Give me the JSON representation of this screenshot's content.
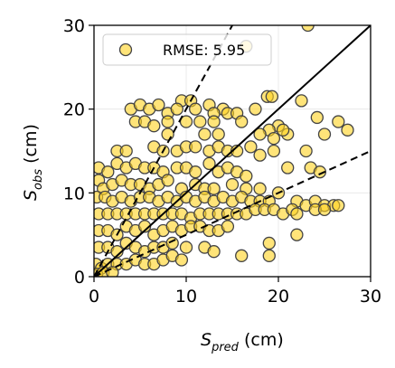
{
  "chart_data": {
    "type": "scatter",
    "xlabel": {
      "symbol": "S",
      "subscript": "pred",
      "unit": "(cm)"
    },
    "ylabel": {
      "symbol": "S",
      "subscript": "obs",
      "unit": "(cm)"
    },
    "xlim": [
      0,
      30
    ],
    "ylim": [
      0,
      30
    ],
    "xticks": [
      0,
      10,
      20,
      30
    ],
    "yticks": [
      0,
      10,
      20,
      30
    ],
    "grid": true,
    "legend": "upper left",
    "reference_lines": [
      {
        "slope": 1,
        "style": "solid"
      },
      {
        "slope": 2,
        "style": "dashed"
      },
      {
        "slope": 0.5,
        "style": "dashed"
      }
    ],
    "x": [
      23.2,
      16.5,
      9.5,
      10.5,
      12.5,
      14,
      18.8,
      19.3,
      22.5,
      4,
      5,
      6,
      7,
      8,
      9,
      11,
      13,
      14.5,
      15.5,
      17.5,
      20,
      21,
      24.2,
      26.5,
      27.5,
      4.5,
      5.5,
      6.5,
      8,
      10,
      11.5,
      13,
      16,
      19,
      20.5,
      8,
      12,
      13.5,
      18,
      19.5,
      25,
      2.5,
      3.5,
      6.5,
      7.5,
      9,
      10,
      11,
      12.5,
      13.5,
      14.5,
      15.5,
      17,
      18,
      19.5,
      23,
      0.5,
      1.5,
      2.5,
      3.5,
      4.5,
      5.5,
      6.5,
      7.5,
      9,
      10,
      11,
      12.5,
      13.5,
      14.5,
      15.5,
      16.5,
      21,
      23.5,
      24.5,
      0.5,
      1,
      2,
      3,
      4,
      5,
      6,
      7,
      8,
      9.5,
      11,
      12,
      13,
      15,
      16.5,
      18,
      20,
      0.3,
      1.2,
      2,
      3,
      4,
      5,
      6,
      7,
      8,
      9,
      10,
      11,
      12,
      13,
      14,
      15,
      16,
      17,
      18,
      19,
      22,
      23,
      24,
      25,
      26,
      26.5,
      0.5,
      1.5,
      2.5,
      3.5,
      4.5,
      5.5,
      6.5,
      7.5,
      8.5,
      9.5,
      10.5,
      11.5,
      12.5,
      13.5,
      14.5,
      15.5,
      16.5,
      17.5,
      18.5,
      19.5,
      20.5,
      21.5,
      22,
      24,
      25,
      0.5,
      1.5,
      2.5,
      3.5,
      4.5,
      5.5,
      6.5,
      7.5,
      8.5,
      9.5,
      10.5,
      11.5,
      12.5,
      13.5,
      14.5,
      19,
      22,
      0.5,
      1.5,
      2.5,
      3.5,
      4.5,
      5.5,
      6.5,
      7.5,
      8.5,
      10,
      12,
      13,
      16,
      19,
      0.2,
      0.8,
      1.5,
      2.5,
      3.5,
      4.5,
      5.5,
      6.5,
      7.5,
      8.5,
      9.5,
      0.3,
      1,
      2
    ],
    "series": [
      {
        "name": "RMSE: 5.95",
        "color": "#ffd21f",
        "edge": "#444444",
        "values": [
          30,
          27.5,
          21,
          21,
          20.5,
          20,
          21.5,
          21.5,
          21,
          20,
          20.5,
          20,
          20.5,
          19.5,
          20,
          20,
          19.5,
          19.5,
          19.5,
          20,
          18,
          17,
          19,
          18.5,
          17.5,
          18.5,
          18.5,
          18,
          18.5,
          18.5,
          18.5,
          18.5,
          18.5,
          17.5,
          17.5,
          17,
          17,
          17,
          17,
          16.5,
          17,
          15,
          15,
          15.5,
          15,
          15,
          15.5,
          15.5,
          15,
          15.5,
          15,
          15,
          15.5,
          14.5,
          15,
          15,
          13,
          12.5,
          13.5,
          13,
          13.5,
          13,
          13,
          12.5,
          13,
          13,
          12.5,
          13.5,
          12.5,
          13,
          12.5,
          12,
          13,
          13,
          12.5,
          11.5,
          10.5,
          11,
          11.5,
          11,
          11,
          10.5,
          11,
          11.5,
          10.5,
          11,
          10.5,
          10.5,
          11,
          10.5,
          10.5,
          10,
          9.5,
          9.5,
          9,
          9.5,
          9,
          9.5,
          9.5,
          9,
          9.5,
          9,
          9.5,
          9,
          9.5,
          9,
          9.5,
          9,
          9.5,
          9,
          9,
          9,
          9,
          8.5,
          9,
          8.5,
          8.5,
          8.5,
          7.5,
          7.5,
          7.5,
          7.5,
          7.5,
          7.5,
          7.5,
          7.5,
          7.5,
          7.5,
          7,
          7.5,
          7.5,
          7.5,
          7.5,
          7.5,
          7.5,
          8,
          8,
          8,
          7.5,
          8,
          7.5,
          8,
          8,
          5.5,
          5.5,
          5,
          6,
          5.5,
          6,
          5,
          5.5,
          6,
          5.5,
          6,
          6,
          5.5,
          5.5,
          6,
          4,
          5,
          3.5,
          3.5,
          3,
          4,
          3.5,
          3,
          3.5,
          3.5,
          4,
          3.5,
          3.5,
          3,
          2.5,
          2.5,
          1.5,
          1,
          1.5,
          1.5,
          1.5,
          2,
          1.5,
          1.5,
          2,
          2.5,
          2,
          0.3,
          0.5,
          0.5
        ]
      }
    ]
  }
}
